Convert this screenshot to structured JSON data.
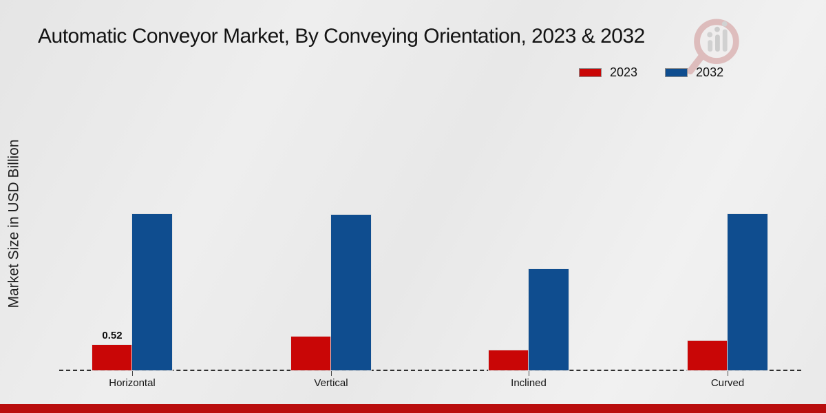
{
  "header": {
    "title": "Automatic Conveyor Market, By Conveying Orientation, 2023 & 2032"
  },
  "legend": {
    "items": [
      {
        "label": "2023",
        "color": "#c90606"
      },
      {
        "label": "2032",
        "color": "#0f4d8f"
      }
    ]
  },
  "y_axis": {
    "label": "Market Size in USD Billion"
  },
  "chart_data": {
    "type": "bar",
    "title": "Automatic Conveyor Market, By Conveying Orientation, 2023 & 2032",
    "xlabel": "",
    "ylabel": "Market Size in USD Billion",
    "categories": [
      "Horizontal",
      "Vertical",
      "Inclined",
      "Curved"
    ],
    "series": [
      {
        "name": "2023",
        "color": "#c90606",
        "values": [
          0.52,
          0.69,
          0.4,
          0.6
        ]
      },
      {
        "name": "2032",
        "color": "#0f4d8f",
        "values": [
          3.17,
          3.16,
          2.06,
          3.17
        ]
      }
    ],
    "data_labels": [
      {
        "category": "Horizontal",
        "series": "2023",
        "text": "0.52"
      }
    ],
    "ylim": [
      0,
      3.5
    ],
    "gridlines": false,
    "legend_position": "top-right",
    "baseline_style": "dashed-black",
    "units": "USD Billion"
  },
  "footer": {
    "accent_color": "#b90d0d"
  },
  "watermark": {
    "name": "magnifier-bar-chart-logo"
  }
}
